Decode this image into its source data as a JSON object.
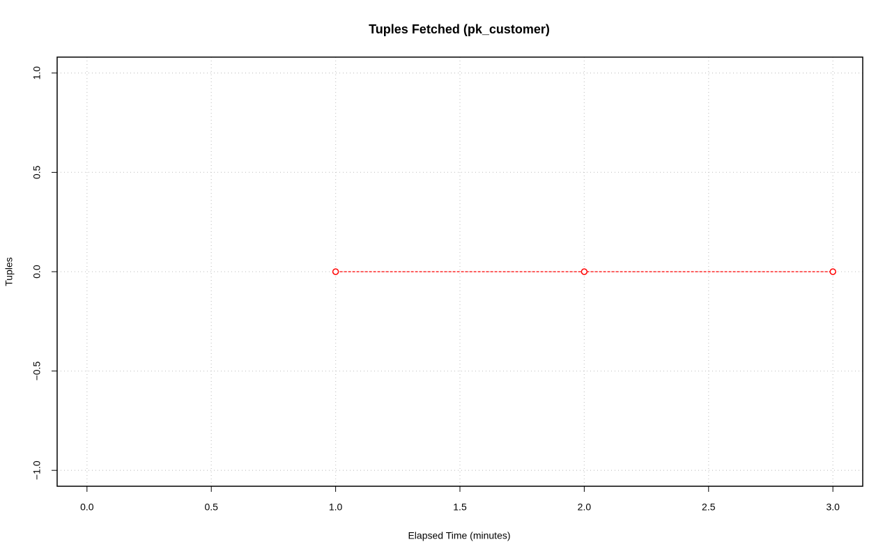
{
  "chart_data": {
    "type": "line",
    "title": "Tuples Fetched (pk_customer)",
    "xlabel": "Elapsed Time (minutes)",
    "ylabel": "Tuples",
    "x": [
      1,
      2,
      3
    ],
    "values": [
      0,
      0,
      0
    ],
    "color": "#ff0000",
    "line_style": "dashed",
    "marker": "open-circle",
    "xlim": [
      -0.12,
      3.12
    ],
    "ylim": [
      -1.08,
      1.08
    ],
    "xticks": [
      {
        "value": 0,
        "label": "0.0"
      },
      0.5,
      {
        "value": 1,
        "label": "1.0"
      },
      1.5,
      {
        "value": 2,
        "label": "2.0"
      },
      2.5,
      {
        "value": 3,
        "label": "3.0"
      }
    ],
    "yticks": [
      {
        "value": -1,
        "label": "−1.0"
      },
      {
        "value": -0.5,
        "label": "−0.5"
      },
      {
        "value": 0,
        "label": "0.0"
      },
      0.5,
      {
        "value": 1,
        "label": "1.0"
      }
    ],
    "grid": true
  }
}
